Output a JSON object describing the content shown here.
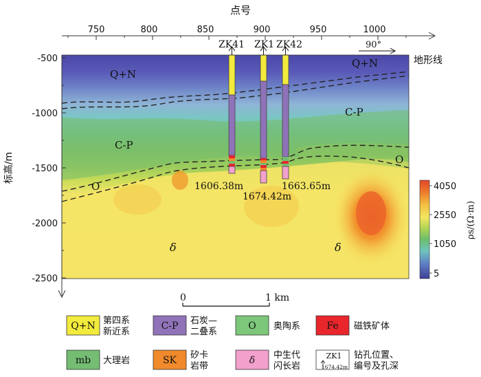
{
  "axes": {
    "top_title": "点号",
    "top_ticks": [
      "750",
      "800",
      "850",
      "900",
      "950",
      "1000"
    ],
    "y_label": "标高/m",
    "y_ticks": [
      "-500",
      "-1000",
      "-1500",
      "-2000",
      "-2500"
    ],
    "terrain_label": "地形线",
    "angle_label": "90°"
  },
  "formations": {
    "qn_left": "Q+N",
    "qn_right": "Q+N",
    "cp_left": "C-P",
    "cp_right": "C-P",
    "o_left": "O",
    "o_right": "O",
    "delta_left": "δ",
    "delta_right": "δ"
  },
  "boreholes": [
    {
      "name": "ZK41",
      "depth": "1606.38m"
    },
    {
      "name": "ZK1",
      "depth": "1674.42m"
    },
    {
      "name": "ZK42",
      "depth": "1663.65m"
    }
  ],
  "colorbar": {
    "ticks": [
      "4050",
      "2550",
      "1050",
      "5"
    ],
    "label": "ρs/(Ω·m)"
  },
  "scale": {
    "start": "0",
    "end": "1 km"
  },
  "legend": [
    {
      "code": "Q+N",
      "text1": "第四系",
      "text2": "新近系",
      "color": "#f2ea3c"
    },
    {
      "code": "C-P",
      "text1": "石炭—",
      "text2": "二叠系",
      "color": "#8f72b8"
    },
    {
      "code": "O",
      "text1": "奥陶系",
      "text2": "",
      "color": "#7cc77a"
    },
    {
      "code": "Fe",
      "text1": "磁铁矿体",
      "text2": "",
      "color": "#e8262c"
    },
    {
      "code": "mb",
      "text1": "大理岩",
      "text2": "",
      "color": "#74bd73"
    },
    {
      "code": "SK",
      "text1": "矽卡",
      "text2": "岩带",
      "color": "#f08a2c"
    },
    {
      "code": "δ",
      "text1": "中生代",
      "text2": "闪长岩",
      "color": "#f2a0cc"
    },
    {
      "code": "ZK1",
      "text1": "钻孔位置、",
      "text2": "编号及孔深",
      "sub": "1674.42m",
      "color": "#ffffff"
    }
  ]
}
